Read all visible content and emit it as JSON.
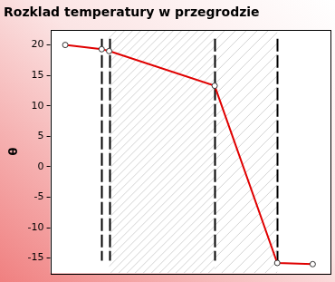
{
  "chart_data": {
    "type": "line",
    "title": "Rozklad temperatury w przegrodzie",
    "y_label": "θ",
    "x": [
      1.6,
      5.5,
      6.3,
      17.6,
      24.3,
      28.1
    ],
    "values": [
      20,
      19.3,
      19,
      13.3,
      -15.8,
      -16
    ],
    "color": "#e00000",
    "marker": "circle",
    "xlim": [
      0,
      30
    ],
    "ylim": [
      -17.5,
      22.5
    ],
    "yticks": [
      -15,
      -10,
      -5,
      0,
      5,
      10,
      15,
      20
    ],
    "tick_labels": "y",
    "grid": false,
    "boundaries": [
      5.5,
      6.3,
      17.6,
      24.3
    ],
    "hatched_layers": [
      [
        6.3,
        17.6
      ],
      [
        17.6,
        24.3
      ]
    ]
  }
}
